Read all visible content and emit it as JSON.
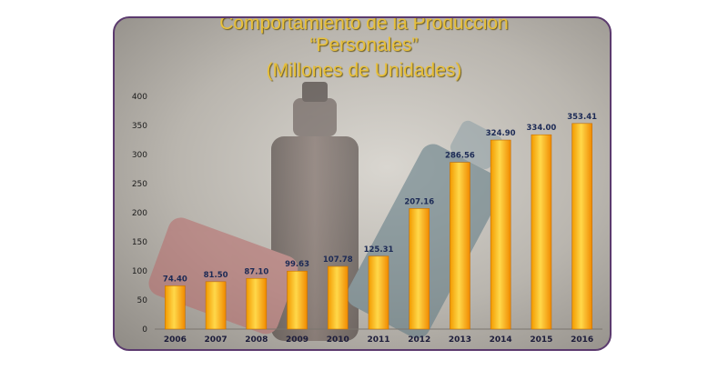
{
  "chart_data": {
    "type": "bar",
    "title_lines": [
      "Comportamiento de la Producción",
      "“Personales”",
      "(Millones de Unidades)"
    ],
    "categories": [
      "2006",
      "2007",
      "2008",
      "2009",
      "2010",
      "2011",
      "2012",
      "2013",
      "2014",
      "2015",
      "2016"
    ],
    "values": [
      74.4,
      81.5,
      87.1,
      99.63,
      107.78,
      125.31,
      207.16,
      286.56,
      324.9,
      334.0,
      353.41
    ],
    "value_labels": [
      "74.40",
      "81.50",
      "87.10",
      "99.63",
      "107.78",
      "125.31",
      "207.16",
      "286.56",
      "324.90",
      "334.00",
      "353.41"
    ],
    "yticks": [
      "0",
      "50",
      "100",
      "150",
      "200",
      "250",
      "300",
      "350",
      "400"
    ],
    "ylim": [
      0,
      400
    ],
    "xlabel": "",
    "ylabel": "",
    "grid": false,
    "bar_color_top": "#ffd23a",
    "bar_color_bottom": "#f08a00"
  }
}
